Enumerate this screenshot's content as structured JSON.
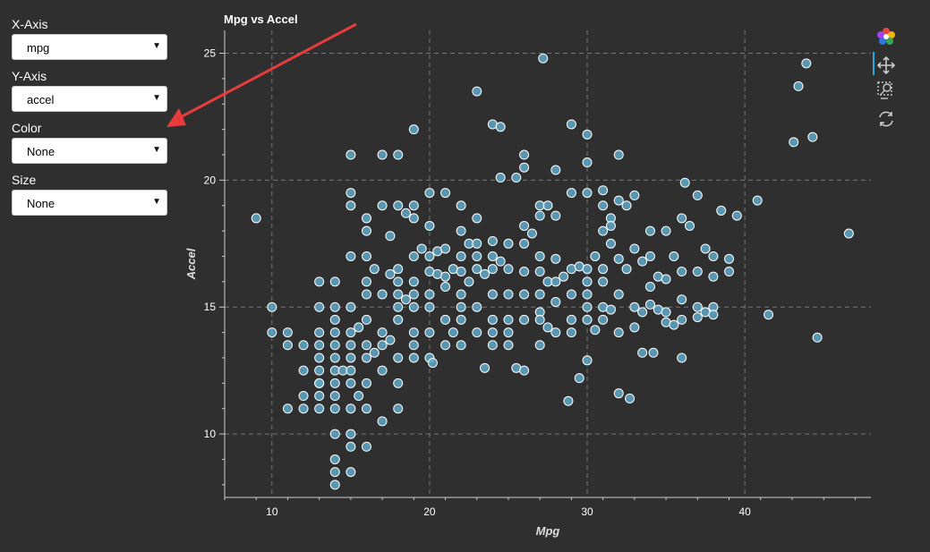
{
  "sidebar": {
    "controls": [
      {
        "label": "X-Axis",
        "value": "mpg"
      },
      {
        "label": "Y-Axis",
        "value": "accel"
      },
      {
        "label": "Color",
        "value": "None"
      },
      {
        "label": "Size",
        "value": "None"
      }
    ]
  },
  "toolbar": {
    "tools": [
      "bokeh-logo-icon",
      "pan-icon",
      "box-zoom-icon",
      "reset-icon"
    ],
    "active_color": "#26aae1"
  },
  "colors": {
    "background": "#2f2f2f",
    "point_fill": "#5fa8c8",
    "point_stroke": "#ffffff",
    "annotation_arrow": "#e83c3c"
  },
  "chart_data": {
    "type": "scatter",
    "title": "Mpg vs Accel",
    "xlabel": "Mpg",
    "ylabel": "Accel",
    "xlim": [
      7,
      48
    ],
    "ylim": [
      7.5,
      25.9
    ],
    "xticks": [
      10,
      20,
      30,
      40
    ],
    "yticks": [
      10,
      15,
      20,
      25
    ],
    "grid": true,
    "points": [
      [
        9,
        18.5
      ],
      [
        10,
        15
      ],
      [
        10,
        14
      ],
      [
        11,
        14
      ],
      [
        11,
        13.5
      ],
      [
        11,
        11
      ],
      [
        12,
        13.5
      ],
      [
        12,
        12.5
      ],
      [
        12,
        11.5
      ],
      [
        12,
        11
      ],
      [
        13,
        16
      ],
      [
        13,
        15
      ],
      [
        13,
        14
      ],
      [
        13,
        13.5
      ],
      [
        13,
        13
      ],
      [
        13,
        12.5
      ],
      [
        13,
        12
      ],
      [
        13,
        11.5
      ],
      [
        13,
        11
      ],
      [
        13,
        12
      ],
      [
        14,
        16
      ],
      [
        14,
        15
      ],
      [
        14,
        14.5
      ],
      [
        14,
        14
      ],
      [
        14,
        13.5
      ],
      [
        14,
        13
      ],
      [
        14,
        12.5
      ],
      [
        14,
        12
      ],
      [
        14,
        11.5
      ],
      [
        14,
        11
      ],
      [
        14,
        10
      ],
      [
        14,
        9
      ],
      [
        14,
        8.5
      ],
      [
        14,
        8
      ],
      [
        14.5,
        12.5
      ],
      [
        15,
        21
      ],
      [
        15,
        19.5
      ],
      [
        15,
        19
      ],
      [
        15,
        17
      ],
      [
        15,
        15
      ],
      [
        15,
        14
      ],
      [
        15,
        13.5
      ],
      [
        15,
        13
      ],
      [
        15,
        12.5
      ],
      [
        15,
        12
      ],
      [
        15,
        11
      ],
      [
        15,
        10
      ],
      [
        15,
        9.5
      ],
      [
        15,
        8.5
      ],
      [
        15.5,
        14.2
      ],
      [
        15.5,
        11.5
      ],
      [
        16,
        18.5
      ],
      [
        16,
        18
      ],
      [
        16,
        17
      ],
      [
        16,
        16
      ],
      [
        16,
        15.5
      ],
      [
        16,
        14.5
      ],
      [
        16,
        13.5
      ],
      [
        16,
        13
      ],
      [
        16,
        12
      ],
      [
        16,
        11
      ],
      [
        16,
        9.5
      ],
      [
        16.5,
        16.5
      ],
      [
        16.5,
        13.2
      ],
      [
        17,
        21
      ],
      [
        17,
        19
      ],
      [
        17,
        15.5
      ],
      [
        17,
        14
      ],
      [
        17,
        13.5
      ],
      [
        17,
        12.5
      ],
      [
        17,
        10.5
      ],
      [
        17.5,
        17.8
      ],
      [
        17.5,
        16.3
      ],
      [
        17.5,
        13.7
      ],
      [
        18,
        21
      ],
      [
        18,
        19
      ],
      [
        18,
        16.5
      ],
      [
        18,
        16
      ],
      [
        18,
        15.5
      ],
      [
        18,
        15
      ],
      [
        18,
        14.5
      ],
      [
        18,
        13
      ],
      [
        18,
        12
      ],
      [
        18,
        11
      ],
      [
        18.5,
        18.7
      ],
      [
        18.5,
        15.3
      ],
      [
        19,
        22
      ],
      [
        19,
        19
      ],
      [
        19,
        18.5
      ],
      [
        19,
        17
      ],
      [
        19,
        16
      ],
      [
        19,
        15.5
      ],
      [
        19,
        15
      ],
      [
        19,
        14
      ],
      [
        19,
        13.5
      ],
      [
        19,
        13
      ],
      [
        19.5,
        17.3
      ],
      [
        20,
        19.5
      ],
      [
        20,
        18.2
      ],
      [
        20,
        17
      ],
      [
        20,
        16.4
      ],
      [
        20,
        15.5
      ],
      [
        20,
        15
      ],
      [
        20,
        14
      ],
      [
        20,
        13
      ],
      [
        20.2,
        12.8
      ],
      [
        20.5,
        17.2
      ],
      [
        20.5,
        16.3
      ],
      [
        21,
        19.5
      ],
      [
        21,
        17.3
      ],
      [
        21,
        16.2
      ],
      [
        21,
        15.8
      ],
      [
        21,
        14.5
      ],
      [
        21,
        13.5
      ],
      [
        21.5,
        16.5
      ],
      [
        21.5,
        14
      ],
      [
        22,
        19
      ],
      [
        22,
        18
      ],
      [
        22,
        17
      ],
      [
        22,
        16.4
      ],
      [
        22,
        15.5
      ],
      [
        22,
        15
      ],
      [
        22,
        14.5
      ],
      [
        22,
        13.5
      ],
      [
        22.5,
        17.5
      ],
      [
        22.5,
        16
      ],
      [
        23,
        23.5
      ],
      [
        23,
        18.5
      ],
      [
        23,
        17.5
      ],
      [
        23,
        17
      ],
      [
        23,
        16.5
      ],
      [
        23,
        15
      ],
      [
        23,
        14
      ],
      [
        23.5,
        16.3
      ],
      [
        23.5,
        12.6
      ],
      [
        24,
        22.2
      ],
      [
        24,
        17.6
      ],
      [
        24,
        17
      ],
      [
        24,
        16.5
      ],
      [
        24,
        15.5
      ],
      [
        24,
        14.5
      ],
      [
        24,
        14
      ],
      [
        24,
        13.5
      ],
      [
        24.5,
        22.1
      ],
      [
        24.5,
        20.1
      ],
      [
        24.5,
        16.8
      ],
      [
        25,
        17.5
      ],
      [
        25,
        16.5
      ],
      [
        25,
        15.5
      ],
      [
        25,
        14.5
      ],
      [
        25,
        14
      ],
      [
        25,
        13.5
      ],
      [
        25.5,
        20.1
      ],
      [
        25.5,
        12.6
      ],
      [
        26,
        21
      ],
      [
        26,
        20.5
      ],
      [
        26,
        18.2
      ],
      [
        26,
        17.5
      ],
      [
        26,
        16.4
      ],
      [
        26,
        15.5
      ],
      [
        26,
        14.5
      ],
      [
        26,
        12.5
      ],
      [
        26.5,
        17.9
      ],
      [
        27,
        19
      ],
      [
        27,
        18.6
      ],
      [
        27,
        17
      ],
      [
        27,
        16.4
      ],
      [
        27,
        15.5
      ],
      [
        27,
        14.8
      ],
      [
        27,
        14.5
      ],
      [
        27,
        13.5
      ],
      [
        27.2,
        24.8
      ],
      [
        27.5,
        19
      ],
      [
        27.5,
        16
      ],
      [
        27.5,
        14.2
      ],
      [
        28,
        20.4
      ],
      [
        28,
        18.6
      ],
      [
        28,
        16.9
      ],
      [
        28,
        16
      ],
      [
        28,
        15.2
      ],
      [
        28,
        14
      ],
      [
        28.5,
        16.2
      ],
      [
        28.8,
        11.3
      ],
      [
        29,
        22.2
      ],
      [
        29,
        19.5
      ],
      [
        29,
        16.5
      ],
      [
        29,
        15.5
      ],
      [
        29,
        14.5
      ],
      [
        29,
        14
      ],
      [
        29.5,
        16.6
      ],
      [
        29.5,
        12.2
      ],
      [
        30,
        21.8
      ],
      [
        30,
        20.7
      ],
      [
        30,
        19.5
      ],
      [
        30,
        16.5
      ],
      [
        30,
        16
      ],
      [
        30,
        15.5
      ],
      [
        30,
        15
      ],
      [
        30,
        14.5
      ],
      [
        30,
        12.9
      ],
      [
        30.5,
        17
      ],
      [
        30.5,
        14.1
      ],
      [
        31,
        19.6
      ],
      [
        31,
        19
      ],
      [
        31,
        18
      ],
      [
        31,
        16.5
      ],
      [
        31,
        16
      ],
      [
        31,
        15
      ],
      [
        31,
        14.5
      ],
      [
        31.5,
        18.5
      ],
      [
        31.5,
        18.2
      ],
      [
        31.5,
        17.5
      ],
      [
        31.5,
        14.9
      ],
      [
        32,
        21
      ],
      [
        32,
        19.2
      ],
      [
        32,
        16.9
      ],
      [
        32,
        15.5
      ],
      [
        32,
        14
      ],
      [
        32,
        11.6
      ],
      [
        32.5,
        19
      ],
      [
        32.5,
        16.5
      ],
      [
        32.7,
        11.4
      ],
      [
        33,
        19.4
      ],
      [
        33,
        17.3
      ],
      [
        33,
        15
      ],
      [
        33,
        14.2
      ],
      [
        33.5,
        16.8
      ],
      [
        33.5,
        14.8
      ],
      [
        33.5,
        13.2
      ],
      [
        34,
        18
      ],
      [
        34,
        17
      ],
      [
        34,
        15.8
      ],
      [
        34,
        15.1
      ],
      [
        34.2,
        13.2
      ],
      [
        34.5,
        16.2
      ],
      [
        34.5,
        14.9
      ],
      [
        35,
        18
      ],
      [
        35,
        16.1
      ],
      [
        35,
        14.8
      ],
      [
        35,
        14.4
      ],
      [
        35.5,
        17
      ],
      [
        35.5,
        14.3
      ],
      [
        36,
        18.5
      ],
      [
        36,
        16.4
      ],
      [
        36,
        15.3
      ],
      [
        36,
        14.5
      ],
      [
        36,
        13
      ],
      [
        36.2,
        19.9
      ],
      [
        36.5,
        18.2
      ],
      [
        37,
        19.4
      ],
      [
        37,
        16.4
      ],
      [
        37,
        15
      ],
      [
        37,
        14.6
      ],
      [
        37.5,
        17.3
      ],
      [
        37.5,
        14.8
      ],
      [
        38,
        17
      ],
      [
        38,
        16.2
      ],
      [
        38,
        15
      ],
      [
        38,
        14.7
      ],
      [
        38.5,
        18.8
      ],
      [
        39,
        16.9
      ],
      [
        39,
        16.4
      ],
      [
        39.5,
        18.6
      ],
      [
        40.8,
        19.2
      ],
      [
        41.5,
        14.7
      ],
      [
        43.1,
        21.5
      ],
      [
        43.4,
        23.7
      ],
      [
        43.9,
        24.6
      ],
      [
        44.3,
        21.7
      ],
      [
        44.6,
        13.8
      ],
      [
        46.6,
        17.9
      ]
    ]
  }
}
